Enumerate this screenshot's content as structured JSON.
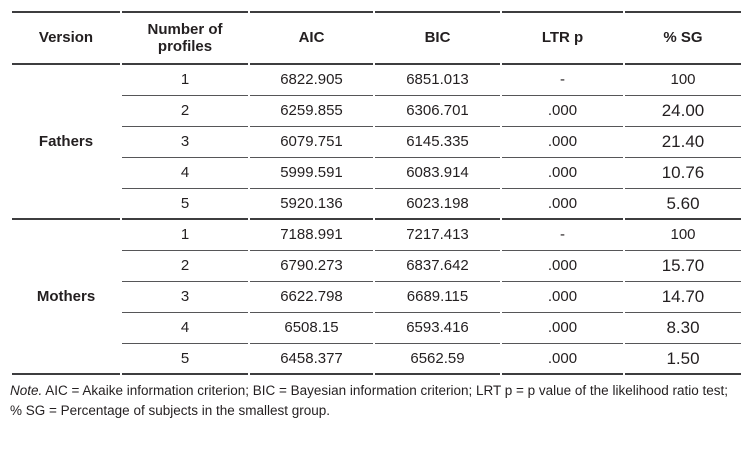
{
  "table": {
    "header": {
      "version": "Version",
      "profiles": "Number of profiles",
      "aic": "AIC",
      "bic": "BIC",
      "ltr_p": "LTR p",
      "sg": "% SG"
    },
    "sections": [
      {
        "version": "Fathers",
        "rows": [
          {
            "profiles": "1",
            "aic": "6822.905",
            "bic": "6851.013",
            "ltr_p": "-",
            "sg": "100"
          },
          {
            "profiles": "2",
            "aic": "6259.855",
            "bic": "6306.701",
            "ltr_p": ".000",
            "sg": "24.00"
          },
          {
            "profiles": "3",
            "aic": "6079.751",
            "bic": "6145.335",
            "ltr_p": ".000",
            "sg": "21.40"
          },
          {
            "profiles": "4",
            "aic": "5999.591",
            "bic": "6083.914",
            "ltr_p": ".000",
            "sg": "10.76"
          },
          {
            "profiles": "5",
            "aic": "5920.136",
            "bic": "6023.198",
            "ltr_p": ".000",
            "sg": "5.60"
          }
        ]
      },
      {
        "version": "Mothers",
        "rows": [
          {
            "profiles": "1",
            "aic": "7188.991",
            "bic": "7217.413",
            "ltr_p": "-",
            "sg": "100"
          },
          {
            "profiles": "2",
            "aic": "6790.273",
            "bic": "6837.642",
            "ltr_p": ".000",
            "sg": "15.70"
          },
          {
            "profiles": "3",
            "aic": "6622.798",
            "bic": "6689.115",
            "ltr_p": ".000",
            "sg": "14.70"
          },
          {
            "profiles": "4",
            "aic": "6508.15",
            "bic": "6593.416",
            "ltr_p": ".000",
            "sg": "8.30"
          },
          {
            "profiles": "5",
            "aic": "6458.377",
            "bic": "6562.59",
            "ltr_p": ".000",
            "sg": "1.50"
          }
        ]
      }
    ]
  },
  "note": {
    "prefix": "Note.",
    "text": " AIC = Akaike information criterion; BIC = Bayesian information criterion; LRT p = p value of the likelihood ratio test; % SG = Percentage of subjects in the smallest group."
  },
  "colors": {
    "text": "#231f20",
    "major_rule": "#3d3d3f",
    "minor_rule": "#565658",
    "background": "#ffffff"
  }
}
